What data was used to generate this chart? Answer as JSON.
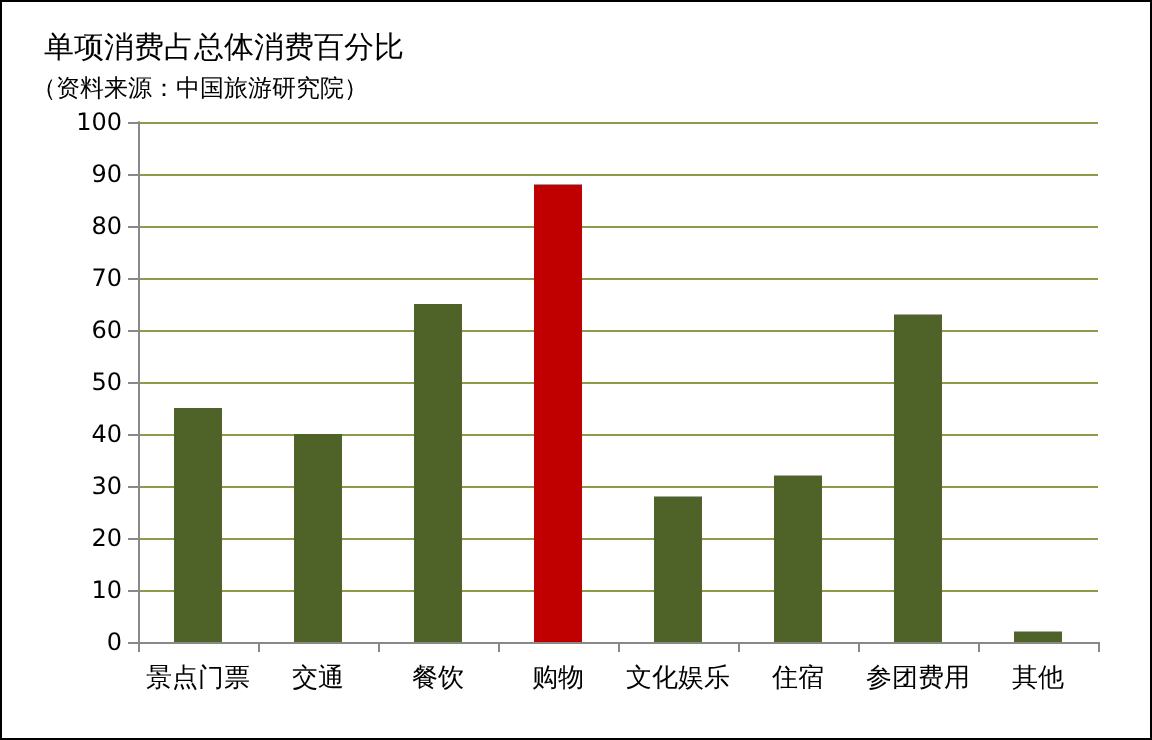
{
  "chart_data": {
    "type": "bar",
    "title": "单项消费占总体消费百分比",
    "subtitle": "（资料来源：中国旅游研究院）",
    "categories": [
      "景点门票",
      "交通",
      "餐饮",
      "购物",
      "文化娱乐",
      "住宿",
      "参团费用",
      "其他"
    ],
    "values": [
      45,
      40,
      65,
      88,
      28,
      32,
      63,
      2
    ],
    "colors": [
      "#4f6228",
      "#4f6228",
      "#4f6228",
      "#c00000",
      "#4f6228",
      "#4f6228",
      "#4f6228",
      "#4f6228"
    ],
    "ylim": [
      0,
      100
    ],
    "yticks": [
      0,
      10,
      20,
      30,
      40,
      50,
      60,
      70,
      80,
      90,
      100
    ],
    "grid": "y"
  }
}
